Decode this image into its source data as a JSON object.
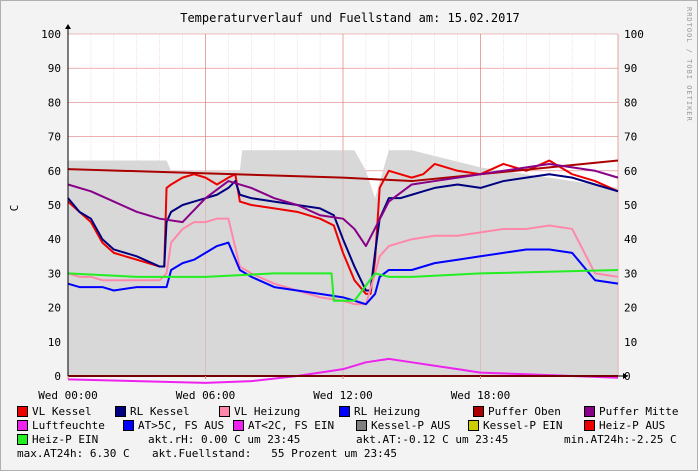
{
  "watermark": "RRDTOOL / TOBI OETIKER",
  "chart_data": {
    "type": "line",
    "title": "Temperaturverlauf und Fuellstand am: 15.02.2017",
    "ylabel": "C",
    "ylim": [
      0,
      100
    ],
    "yticks": [
      0,
      10,
      20,
      30,
      40,
      50,
      60,
      70,
      80,
      90,
      100
    ],
    "x_range_hours": [
      0,
      24
    ],
    "xticks": [
      {
        "hour": 0,
        "label": "Wed 00:00"
      },
      {
        "hour": 6,
        "label": "Wed 06:00"
      },
      {
        "hour": 12,
        "label": "Wed 12:00"
      },
      {
        "hour": 18,
        "label": "Wed 18:00"
      }
    ],
    "grid": true,
    "series": [
      {
        "name": "VL Kessel",
        "color": "#ee0000",
        "x": [
          0,
          0.5,
          1,
          1.5,
          2,
          3,
          4,
          4.2,
          4.3,
          4.5,
          5,
          5.5,
          6,
          6.5,
          7,
          7.3,
          7.5,
          8,
          9,
          10,
          11,
          11.6,
          12,
          12.5,
          13,
          13.2,
          13.4,
          13.6,
          14,
          14.5,
          15,
          15.5,
          16,
          17,
          18,
          19,
          20,
          21,
          22,
          23,
          24
        ],
        "values": [
          51,
          48,
          45,
          39,
          36,
          34,
          32,
          32,
          55,
          56,
          58,
          59,
          58,
          56,
          58,
          59,
          51,
          50,
          49,
          48,
          46,
          44,
          36,
          28,
          24,
          24,
          34,
          55,
          60,
          59,
          58,
          59,
          62,
          60,
          59,
          62,
          60,
          63,
          59,
          57,
          54
        ]
      },
      {
        "name": "RL Kessel",
        "color": "#000080",
        "x": [
          0,
          0.5,
          1,
          1.5,
          2,
          3,
          4,
          4.2,
          4.3,
          4.5,
          5,
          5.5,
          6,
          6.5,
          7,
          7.3,
          7.5,
          8,
          9,
          10,
          11,
          11.6,
          12,
          12.5,
          13,
          13.2,
          13.4,
          13.6,
          14,
          14.5,
          15,
          15.5,
          16,
          17,
          18,
          19,
          20,
          21,
          22,
          23,
          24
        ],
        "values": [
          52,
          48,
          46,
          40,
          37,
          35,
          32,
          32,
          45,
          48,
          50,
          51,
          52,
          53,
          55,
          57,
          53,
          52,
          51,
          50,
          49,
          47,
          40,
          32,
          25,
          25,
          36,
          46,
          52,
          52,
          53,
          54,
          55,
          56,
          55,
          57,
          58,
          59,
          58,
          56,
          54
        ]
      },
      {
        "name": "VL Heizung",
        "color": "#ff88aa",
        "x": [
          0,
          0.5,
          1,
          1.5,
          2,
          3,
          4,
          4.3,
          4.5,
          5,
          5.5,
          6,
          6.5,
          7,
          7.5,
          8,
          9,
          10,
          11,
          12,
          12.5,
          13,
          13.4,
          13.6,
          14,
          15,
          16,
          17,
          18,
          19,
          20,
          21,
          22,
          23,
          24
        ],
        "values": [
          30,
          29,
          29,
          28,
          28,
          28,
          28,
          30,
          39,
          43,
          45,
          45,
          46,
          46,
          32,
          30,
          27,
          25,
          23,
          22,
          21,
          21,
          30,
          35,
          38,
          40,
          41,
          41,
          42,
          43,
          43,
          44,
          43,
          30,
          29
        ]
      },
      {
        "name": "RL Heizung",
        "color": "#0000ff",
        "x": [
          0,
          0.5,
          1,
          1.5,
          2,
          3,
          4,
          4.3,
          4.5,
          5,
          5.5,
          6,
          6.5,
          7,
          7.5,
          8,
          9,
          10,
          11,
          12,
          12.5,
          13,
          13.4,
          13.6,
          14,
          15,
          16,
          17,
          18,
          19,
          20,
          21,
          22,
          23,
          24
        ],
        "values": [
          27,
          26,
          26,
          26,
          25,
          26,
          26,
          26,
          31,
          33,
          34,
          36,
          38,
          39,
          31,
          29,
          26,
          25,
          24,
          23,
          22,
          21,
          24,
          29,
          31,
          31,
          33,
          34,
          35,
          36,
          37,
          37,
          36,
          28,
          27
        ]
      },
      {
        "name": "Puffer Oben",
        "color": "#aa0000",
        "x": [
          0,
          12,
          15,
          24
        ],
        "values": [
          60.5,
          58,
          57,
          63
        ]
      },
      {
        "name": "Puffer Mitte",
        "color": "#880088",
        "x": [
          0,
          1,
          2,
          3,
          4,
          5,
          6,
          7,
          8,
          9,
          10,
          11,
          12,
          12.5,
          13,
          14,
          15,
          16,
          17,
          18,
          19,
          20,
          21,
          22,
          23,
          24
        ],
        "values": [
          56,
          54,
          51,
          48,
          46,
          45,
          52,
          57,
          55,
          52,
          50,
          47,
          46,
          43,
          38,
          51,
          56,
          57,
          58,
          59,
          60,
          61,
          62,
          61,
          60,
          58
        ]
      },
      {
        "name": "Luftfeuchte",
        "color": "#ee22ee",
        "x": [
          0,
          24
        ],
        "values": [
          0,
          0
        ]
      },
      {
        "name": "AT>5C, FS AUS",
        "color": "#0000ff",
        "x": [
          0,
          24
        ],
        "values": [
          0,
          0
        ]
      },
      {
        "name": "AT<2C, FS EIN",
        "color": "#ee22ee",
        "x": [
          0,
          3,
          6,
          8,
          10,
          12,
          13,
          14,
          15,
          16,
          17,
          18,
          20,
          22,
          24
        ],
        "values": [
          -1,
          -1.5,
          -2,
          -1.5,
          0,
          2,
          4,
          5,
          4,
          3,
          2,
          1,
          0.5,
          0,
          -0.5
        ]
      },
      {
        "name": "Kessel-P AUS",
        "color": "#808080",
        "x": [
          0,
          24
        ],
        "values": [
          0,
          0
        ]
      },
      {
        "name": "Kessel-P EIN",
        "color": "#cccc00",
        "x": [
          0,
          24
        ],
        "values": [
          0,
          0
        ]
      },
      {
        "name": "Heiz-P AUS",
        "color": "#ee0000",
        "x": [
          0,
          24
        ],
        "values": [
          0,
          0
        ]
      },
      {
        "name": "Heiz-P EIN",
        "color": "#22ee22",
        "x": [
          0,
          3,
          6,
          9,
          11.5,
          11.6,
          12.5,
          13.4,
          14,
          15,
          18,
          24
        ],
        "values": [
          30,
          29,
          29,
          30,
          30,
          22,
          22,
          30,
          29,
          29,
          30,
          31
        ]
      }
    ],
    "fill_area": {
      "name": "akt.Fuellstand",
      "color": "#d8d8d8",
      "x": [
        0,
        4.3,
        4.5,
        7.5,
        7.6,
        12.5,
        13.0,
        13.4,
        14,
        15,
        18,
        24
      ],
      "values": [
        63,
        63,
        60,
        60,
        66,
        66,
        60,
        52,
        66,
        66,
        61,
        55
      ]
    }
  },
  "legend": [
    {
      "label": "VL Kessel",
      "color": "#ee0000"
    },
    {
      "label": "RL Kessel",
      "color": "#000080"
    },
    {
      "label": "VL Heizung",
      "color": "#ff88aa"
    },
    {
      "label": "RL Heizung",
      "color": "#0000ff"
    },
    {
      "label": "Puffer Oben",
      "color": "#aa0000"
    },
    {
      "label": "Puffer Mitte",
      "color": "#880088"
    },
    {
      "label": "Luftfeuchte",
      "color": "#ee22ee"
    },
    {
      "label": "AT>5C, FS AUS",
      "color": "#0000ff"
    },
    {
      "label": "AT<2C, FS EIN",
      "color": "#ee22ee"
    },
    {
      "label": "Kessel-P AUS",
      "color": "#808080"
    },
    {
      "label": "Kessel-P EIN",
      "color": "#cccc00"
    },
    {
      "label": "Heiz-P AUS",
      "color": "#ee0000"
    },
    {
      "label": "Heiz-P EIN",
      "color": "#22ee22"
    }
  ],
  "stats": {
    "akt_rh": "akt.rH: 0.00 C um 23:45",
    "akt_at": "akt.AT:-0.12 C um 23:45",
    "min_at24h": "min.AT24h:-2.25 C",
    "max_at24h": "max.AT24h: 6.30 C",
    "akt_fuellstand": "akt.Fuellstand:   55 Prozent um 23:45"
  }
}
